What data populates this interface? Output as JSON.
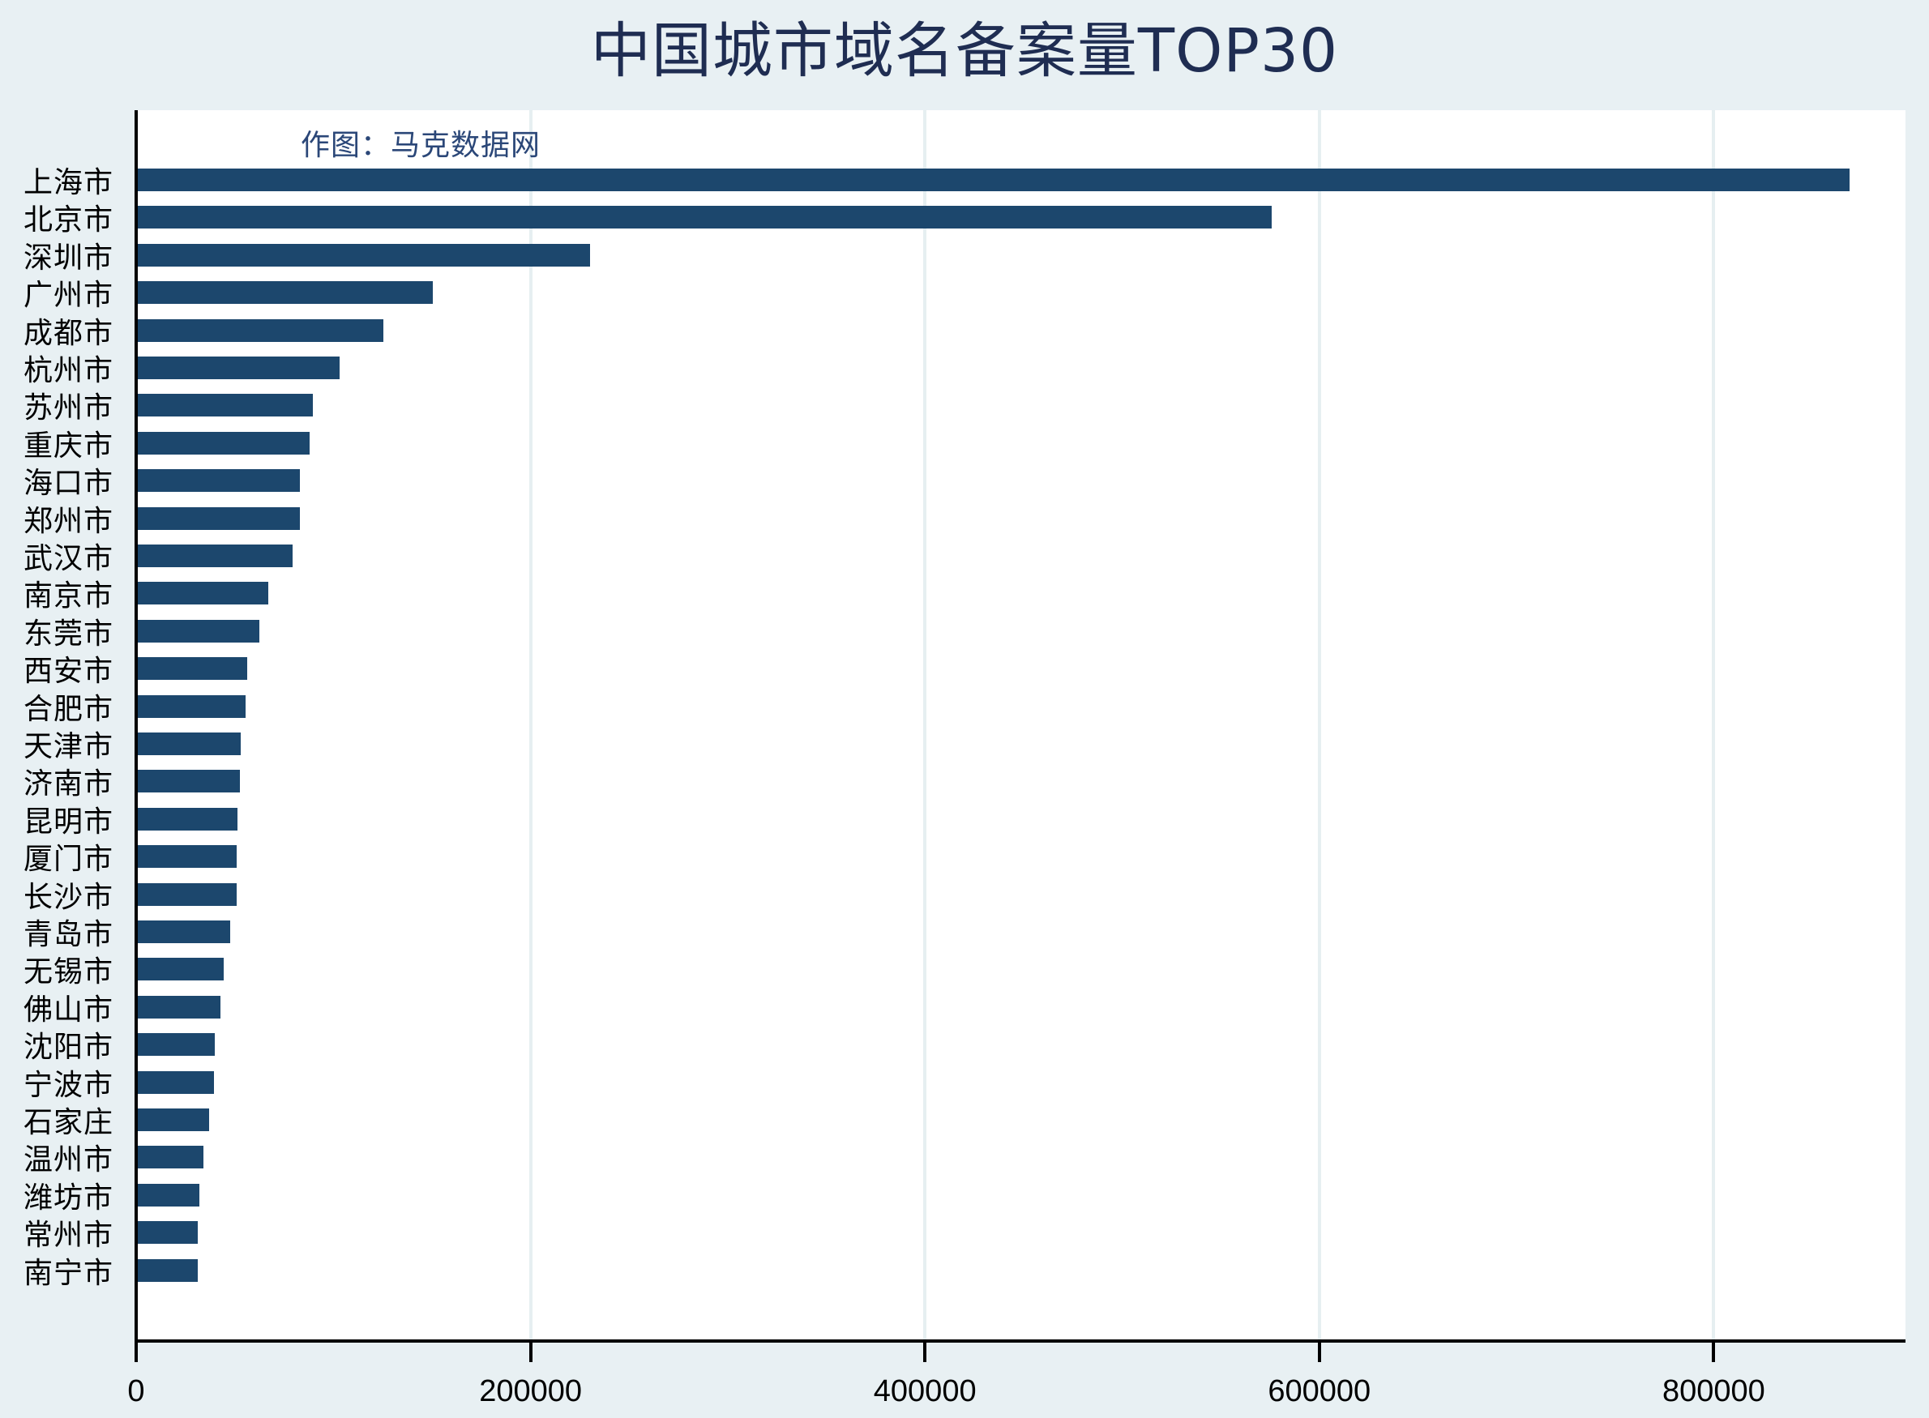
{
  "title": "中国城市域名备案量TOP30",
  "annotation": "作图：马克数据网",
  "colors": {
    "background": "#e8f0f3",
    "plot_background": "#ffffff",
    "bar": "#1c476d",
    "title": "#1f2d52",
    "annotation": "#2b4778",
    "gridline": "#e6eff1"
  },
  "x_axis": {
    "ticks": [
      {
        "value": 0,
        "label": "0"
      },
      {
        "value": 200000,
        "label": "200000"
      },
      {
        "value": 400000,
        "label": "400000"
      },
      {
        "value": 600000,
        "label": "600000"
      },
      {
        "value": 800000,
        "label": "800000"
      }
    ]
  },
  "chart_data": {
    "type": "bar",
    "orientation": "horizontal",
    "title": "中国城市域名备案量TOP30",
    "annotation": "作图：马克数据网",
    "xlabel": "",
    "ylabel": "",
    "xlim": [
      0,
      898000
    ],
    "grid": true,
    "legend": null,
    "categories": [
      "上海市",
      "北京市",
      "深圳市",
      "广州市",
      "成都市",
      "杭州市",
      "苏州市",
      "重庆市",
      "海口市",
      "郑州市",
      "武汉市",
      "南京市",
      "东莞市",
      "西安市",
      "合肥市",
      "天津市",
      "济南市",
      "昆明市",
      "厦门市",
      "长沙市",
      "青岛市",
      "无锡市",
      "佛山市",
      "沈阳市",
      "宁波市",
      "石家庄",
      "温州市",
      "潍坊市",
      "常州市",
      "南宁市"
    ],
    "values": [
      869000,
      576000,
      230000,
      150400,
      125200,
      103200,
      89500,
      88000,
      83200,
      82900,
      79200,
      66800,
      62300,
      56400,
      55400,
      52900,
      52500,
      51500,
      51100,
      50800,
      47800,
      44300,
      42600,
      39900,
      39500,
      37000,
      34200,
      31900,
      31200,
      31100
    ]
  }
}
